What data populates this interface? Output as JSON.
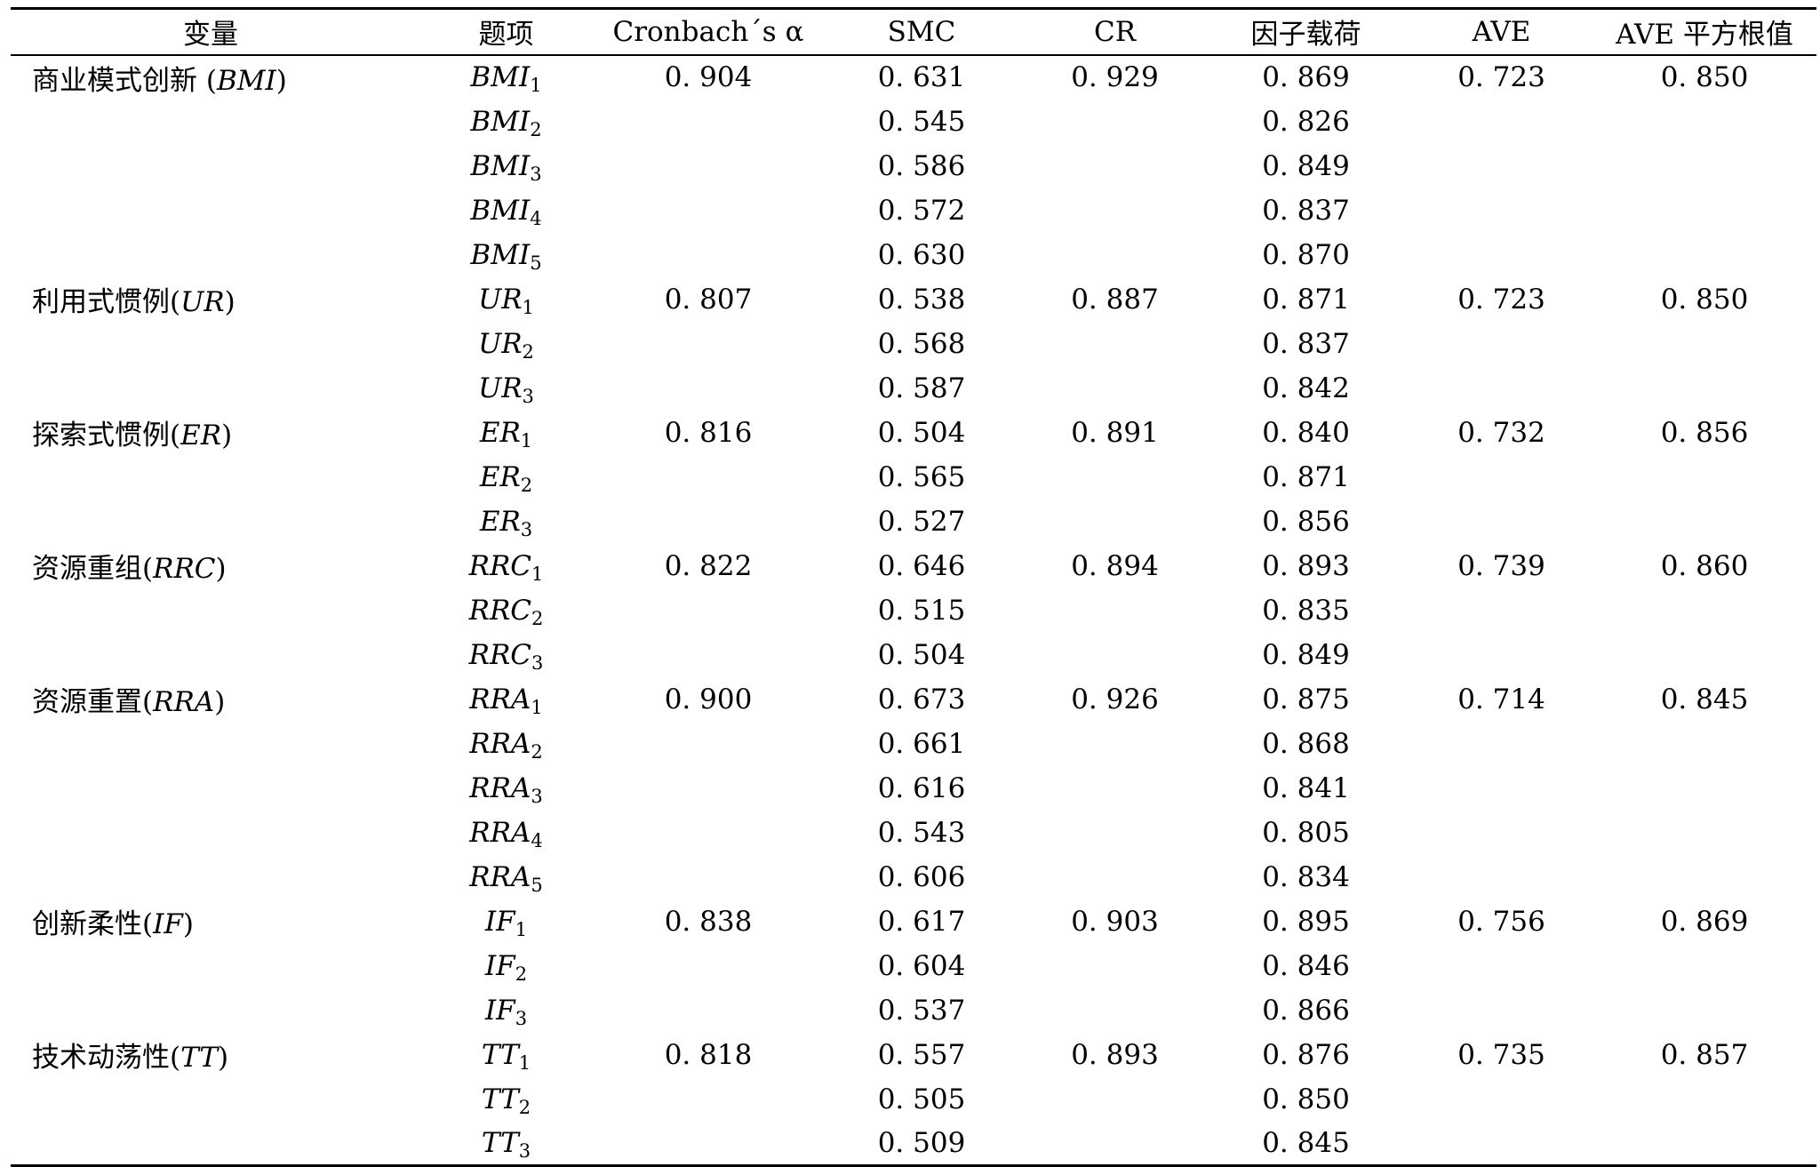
{
  "table": {
    "headers": [
      "变量",
      "题项",
      "Cronbach´s α",
      "SMC",
      "CR",
      "因子载荷",
      "AVE",
      "AVE 平方根值"
    ],
    "groups": [
      {
        "name": "商业模式创新",
        "open": " (",
        "abbr": "BMI",
        "close": ")",
        "alpha": "0. 904",
        "cr": "0. 929",
        "ave": "0. 723",
        "ave_sqrt": "0. 850",
        "items": [
          {
            "code": "BMI",
            "sub": "1",
            "smc": "0. 631",
            "loading": "0. 869"
          },
          {
            "code": "BMI",
            "sub": "2",
            "smc": "0. 545",
            "loading": "0. 826"
          },
          {
            "code": "BMI",
            "sub": "3",
            "smc": "0. 586",
            "loading": "0. 849"
          },
          {
            "code": "BMI",
            "sub": "4",
            "smc": "0. 572",
            "loading": "0. 837"
          },
          {
            "code": "BMI",
            "sub": "5",
            "smc": "0. 630",
            "loading": "0. 870"
          }
        ]
      },
      {
        "name": "利用式惯例",
        "open": "(",
        "abbr": "UR",
        "close": ")",
        "alpha": "0. 807",
        "cr": "0. 887",
        "ave": "0. 723",
        "ave_sqrt": "0. 850",
        "items": [
          {
            "code": "UR",
            "sub": "1",
            "smc": "0. 538",
            "loading": "0. 871"
          },
          {
            "code": "UR",
            "sub": "2",
            "smc": "0. 568",
            "loading": "0. 837"
          },
          {
            "code": "UR",
            "sub": "3",
            "smc": "0. 587",
            "loading": "0. 842"
          }
        ]
      },
      {
        "name": "探索式惯例",
        "open": "(",
        "abbr": "ER",
        "close": ")",
        "alpha": "0. 816",
        "cr": "0. 891",
        "ave": "0. 732",
        "ave_sqrt": "0. 856",
        "items": [
          {
            "code": "ER",
            "sub": "1",
            "smc": "0. 504",
            "loading": "0. 840"
          },
          {
            "code": "ER",
            "sub": "2",
            "smc": "0. 565",
            "loading": "0. 871"
          },
          {
            "code": "ER",
            "sub": "3",
            "smc": "0. 527",
            "loading": "0. 856"
          }
        ]
      },
      {
        "name": "资源重组",
        "open": "(",
        "abbr": "RRC",
        "close": ")",
        "alpha": "0. 822",
        "cr": "0. 894",
        "ave": "0. 739",
        "ave_sqrt": "0. 860",
        "items": [
          {
            "code": "RRC",
            "sub": "1",
            "smc": "0. 646",
            "loading": "0. 893"
          },
          {
            "code": "RRC",
            "sub": "2",
            "smc": "0. 515",
            "loading": "0. 835"
          },
          {
            "code": "RRC",
            "sub": "3",
            "smc": "0. 504",
            "loading": "0. 849"
          }
        ]
      },
      {
        "name": "资源重置",
        "open": "(",
        "abbr": "RRA",
        "close": ")",
        "alpha": "0. 900",
        "cr": "0. 926",
        "ave": "0. 714",
        "ave_sqrt": "0. 845",
        "items": [
          {
            "code": "RRA",
            "sub": "1",
            "smc": "0. 673",
            "loading": "0. 875"
          },
          {
            "code": "RRA",
            "sub": "2",
            "smc": "0. 661",
            "loading": "0. 868"
          },
          {
            "code": "RRA",
            "sub": "3",
            "smc": "0. 616",
            "loading": "0. 841"
          },
          {
            "code": "RRA",
            "sub": "4",
            "smc": "0. 543",
            "loading": "0. 805"
          },
          {
            "code": "RRA",
            "sub": "5",
            "smc": "0. 606",
            "loading": "0. 834"
          }
        ]
      },
      {
        "name": "创新柔性",
        "open": "(",
        "abbr": "IF",
        "close": ")",
        "alpha": "0. 838",
        "cr": "0. 903",
        "ave": "0. 756",
        "ave_sqrt": "0. 869",
        "items": [
          {
            "code": "IF",
            "sub": "1",
            "smc": "0. 617",
            "loading": "0. 895"
          },
          {
            "code": "IF",
            "sub": "2",
            "smc": "0. 604",
            "loading": "0. 846"
          },
          {
            "code": "IF",
            "sub": "3",
            "smc": "0. 537",
            "loading": "0. 866"
          }
        ]
      },
      {
        "name": "技术动荡性",
        "open": "(",
        "abbr": "TT",
        "close": ")",
        "alpha": "0. 818",
        "cr": "0. 893",
        "ave": "0. 735",
        "ave_sqrt": "0. 857",
        "items": [
          {
            "code": "TT",
            "sub": "1",
            "smc": "0. 557",
            "loading": "0. 876"
          },
          {
            "code": "TT",
            "sub": "2",
            "smc": "0. 505",
            "loading": "0. 850"
          },
          {
            "code": "TT",
            "sub": "3",
            "smc": "0. 509",
            "loading": "0. 845"
          }
        ]
      }
    ]
  }
}
